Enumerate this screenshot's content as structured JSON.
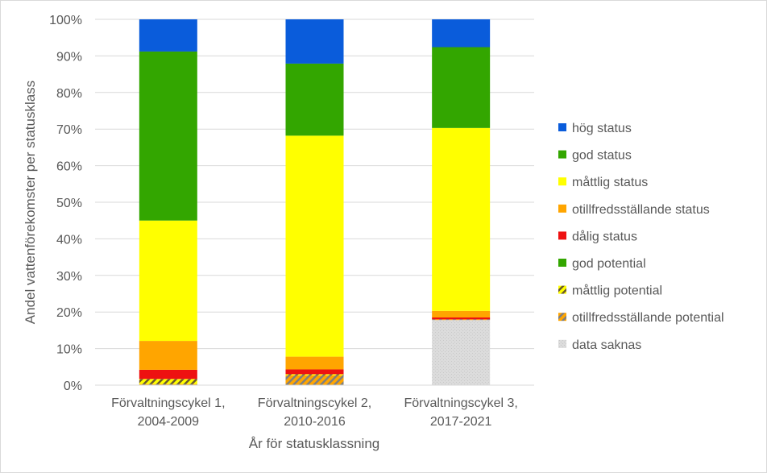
{
  "chart_data": {
    "type": "bar",
    "stacked": true,
    "percent": true,
    "xlabel": "År för statusklassning",
    "ylabel": "Andel vattenförekomster per statusklass",
    "ylim": [
      0,
      100
    ],
    "yticks": [
      "0%",
      "10%",
      "20%",
      "30%",
      "40%",
      "50%",
      "60%",
      "70%",
      "80%",
      "90%",
      "100%"
    ],
    "grid": true,
    "legend_position": "right",
    "categories": [
      [
        "Förvaltningscykel 1,",
        "2004-2009"
      ],
      [
        "Förvaltningscykel 2,",
        "2010-2016"
      ],
      [
        "Förvaltningscykel 3,",
        "2017-2021"
      ]
    ],
    "series": [
      {
        "name": "data saknas",
        "color": "#d9d9d9",
        "pattern": "dots",
        "values": [
          0,
          0,
          17.8
        ]
      },
      {
        "name": "otillfredsställande potential",
        "color": "#ffa500",
        "pattern": "stripes-gray",
        "values": [
          0.3,
          2.7,
          0.2
        ]
      },
      {
        "name": "måttlig potential",
        "color": "#ffff00",
        "pattern": "stripes-dark",
        "values": [
          1.4,
          0.3,
          0
        ]
      },
      {
        "name": "god potential",
        "color": "#33a600",
        "pattern": "none",
        "values": [
          0,
          0,
          0
        ]
      },
      {
        "name": "dålig status",
        "color": "#ee1111",
        "pattern": "none",
        "values": [
          2.5,
          1.3,
          0.5
        ]
      },
      {
        "name": "otillfredsställande status",
        "color": "#ffa500",
        "pattern": "none",
        "values": [
          7.9,
          3.5,
          1.8
        ]
      },
      {
        "name": "måttlig status",
        "color": "#ffff00",
        "pattern": "none",
        "values": [
          32.9,
          60.4,
          50.0
        ]
      },
      {
        "name": "god status",
        "color": "#33a600",
        "pattern": "none",
        "values": [
          46.2,
          19.7,
          22.1
        ]
      },
      {
        "name": "hög status",
        "color": "#0a5cdb",
        "pattern": "none",
        "values": [
          8.8,
          12.1,
          7.6
        ]
      }
    ],
    "legend_order": [
      "hög status",
      "god status",
      "måttlig status",
      "otillfredsställande status",
      "dålig status",
      "god potential",
      "måttlig potential",
      "otillfredsställande potential",
      "data saknas"
    ]
  }
}
